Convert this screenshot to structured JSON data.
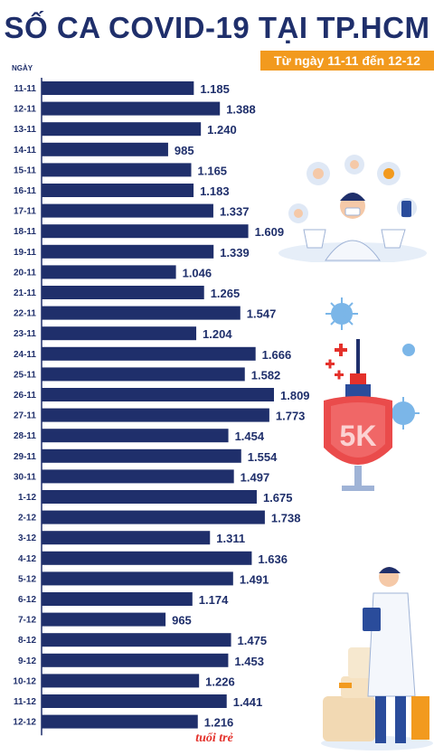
{
  "header": {
    "title": "SỐ CA COVID-19 TẠI TP.HCM",
    "subtitle": "Từ ngày 11-11 đến 12-12",
    "unit_label": "NGÀY"
  },
  "brand": {
    "logo_text": "tuổi trẻ"
  },
  "colors": {
    "bar": "#1f2f6b",
    "accent": "#f29a1e",
    "title": "#1f2f6b"
  },
  "chart_data": {
    "type": "bar",
    "orientation": "horizontal",
    "title": "SỐ CA COVID-19 TẠI TP.HCM",
    "subtitle": "Từ ngày 11-11 đến 12-12",
    "ylabel": "NGÀY",
    "xlabel": "",
    "xlim": [
      0,
      2000
    ],
    "grid": false,
    "categories": [
      "11-11",
      "12-11",
      "13-11",
      "14-11",
      "15-11",
      "16-11",
      "17-11",
      "18-11",
      "19-11",
      "20-11",
      "21-11",
      "22-11",
      "23-11",
      "24-11",
      "25-11",
      "26-11",
      "27-11",
      "28-11",
      "29-11",
      "30-11",
      "1-12",
      "2-12",
      "3-12",
      "4-12",
      "5-12",
      "6-12",
      "7-12",
      "8-12",
      "9-12",
      "10-12",
      "11-12",
      "12-12"
    ],
    "values": [
      1185,
      1388,
      1240,
      985,
      1165,
      1183,
      1337,
      1609,
      1339,
      1046,
      1265,
      1547,
      1204,
      1666,
      1582,
      1809,
      1773,
      1454,
      1554,
      1497,
      1675,
      1738,
      1311,
      1636,
      1491,
      1174,
      965,
      1475,
      1453,
      1226,
      1441,
      1216
    ],
    "value_labels": [
      "1.185",
      "1.388",
      "1.240",
      "985",
      "1.165",
      "1.183",
      "1.337",
      "1.609",
      "1.339",
      "1.046",
      "1.265",
      "1.547",
      "1.204",
      "1.666",
      "1.582",
      "1.809",
      "1.773",
      "1.454",
      "1.554",
      "1.497",
      "1.675",
      "1.738",
      "1.311",
      "1.636",
      "1.491",
      "1.174",
      "965",
      "1.475",
      "1.453",
      "1.226",
      "1.441",
      "1.216"
    ]
  },
  "illustrations": {
    "doctor_top": "doctor-icon",
    "virus": "virus-icon",
    "vaccine_shield": "vaccine-shield-icon",
    "shield_text": "5K",
    "doctor_bottom": "doctor-clipboard-icon"
  }
}
